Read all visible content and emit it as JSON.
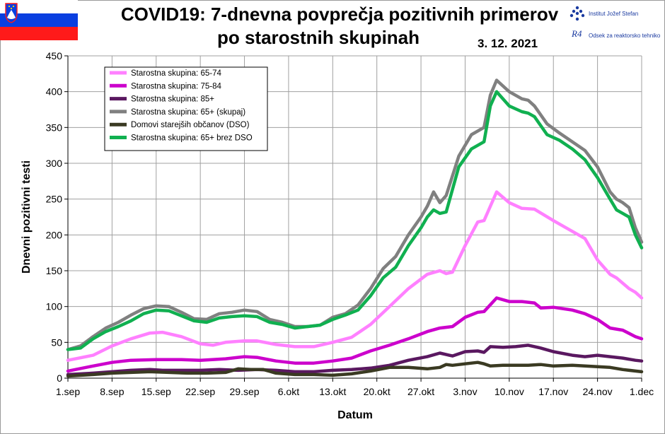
{
  "header": {
    "title_line1": "COVID19: 7-dnevna povprečja pozitivnih primerov",
    "title_line2": "po starostnih skupinah",
    "date": "3. 12. 2021",
    "institute_name": "Institut Jožef Stefan",
    "institute_name_bold": "Jožef Stefan",
    "institute_prefix": "Institut",
    "department": "Odsek za reaktorsko tehniko",
    "department_logo_glyph": "R4",
    "flag_colors": [
      "#ffffff",
      "#0a3fe0",
      "#ff1a1a"
    ],
    "logo_color": "#1a3aa0"
  },
  "chart_data": {
    "type": "line",
    "title": "COVID19: 7-dnevna povprečja pozitivnih primerov po starostnih skupinah",
    "xlabel": "Datum",
    "ylabel": "Dnevni pozitivni  testi",
    "ylim": [
      0,
      450
    ],
    "yticks": [
      0,
      50,
      100,
      150,
      200,
      250,
      300,
      350,
      400,
      450
    ],
    "xrange_days": [
      0,
      91
    ],
    "xticks": [
      {
        "day": 0,
        "label": "1.sep"
      },
      {
        "day": 7,
        "label": "8.sep"
      },
      {
        "day": 14,
        "label": "15.sep"
      },
      {
        "day": 21,
        "label": "22.sep"
      },
      {
        "day": 28,
        "label": "29.sep"
      },
      {
        "day": 35,
        "label": "6.okt"
      },
      {
        "day": 42,
        "label": "13.okt"
      },
      {
        "day": 49,
        "label": "20.okt"
      },
      {
        "day": 56,
        "label": "27.okt"
      },
      {
        "day": 63,
        "label": "3.nov"
      },
      {
        "day": 70,
        "label": "10.nov"
      },
      {
        "day": 77,
        "label": "17.nov"
      },
      {
        "day": 84,
        "label": "24.nov"
      },
      {
        "day": 91,
        "label": "1.dec"
      }
    ],
    "grid": true,
    "legend_position": "top-left",
    "series": [
      {
        "name": "Starostna skupina: 65-74",
        "color": "#ff80ff",
        "points": [
          [
            0,
            25
          ],
          [
            4,
            32
          ],
          [
            7,
            45
          ],
          [
            10,
            55
          ],
          [
            13,
            63
          ],
          [
            15,
            64
          ],
          [
            18,
            58
          ],
          [
            21,
            48
          ],
          [
            23,
            46
          ],
          [
            25,
            50
          ],
          [
            28,
            52
          ],
          [
            30,
            52
          ],
          [
            33,
            47
          ],
          [
            36,
            44
          ],
          [
            39,
            44
          ],
          [
            42,
            50
          ],
          [
            45,
            57
          ],
          [
            48,
            75
          ],
          [
            51,
            100
          ],
          [
            54,
            125
          ],
          [
            57,
            145
          ],
          [
            59,
            150
          ],
          [
            60,
            146
          ],
          [
            61,
            148
          ],
          [
            63,
            185
          ],
          [
            65,
            218
          ],
          [
            66,
            220
          ],
          [
            68,
            260
          ],
          [
            70,
            245
          ],
          [
            72,
            237
          ],
          [
            74,
            236
          ],
          [
            77,
            220
          ],
          [
            80,
            205
          ],
          [
            82,
            195
          ],
          [
            84,
            165
          ],
          [
            86,
            145
          ],
          [
            87,
            140
          ],
          [
            89,
            125
          ],
          [
            90,
            120
          ],
          [
            91,
            112
          ]
        ]
      },
      {
        "name": "Starostna skupina: 75-84",
        "color": "#cc00cc",
        "points": [
          [
            0,
            10
          ],
          [
            4,
            17
          ],
          [
            7,
            22
          ],
          [
            10,
            25
          ],
          [
            14,
            26
          ],
          [
            18,
            26
          ],
          [
            21,
            25
          ],
          [
            25,
            27
          ],
          [
            28,
            30
          ],
          [
            30,
            29
          ],
          [
            33,
            24
          ],
          [
            36,
            21
          ],
          [
            39,
            21
          ],
          [
            42,
            24
          ],
          [
            45,
            28
          ],
          [
            48,
            38
          ],
          [
            51,
            46
          ],
          [
            54,
            55
          ],
          [
            57,
            65
          ],
          [
            59,
            70
          ],
          [
            61,
            72
          ],
          [
            63,
            85
          ],
          [
            65,
            92
          ],
          [
            66,
            93
          ],
          [
            68,
            112
          ],
          [
            70,
            107
          ],
          [
            72,
            107
          ],
          [
            74,
            105
          ],
          [
            75,
            98
          ],
          [
            77,
            99
          ],
          [
            80,
            95
          ],
          [
            82,
            90
          ],
          [
            84,
            82
          ],
          [
            86,
            70
          ],
          [
            88,
            67
          ],
          [
            90,
            58
          ],
          [
            91,
            55
          ]
        ]
      },
      {
        "name": "Starostna skupina: 85+",
        "color": "#5a1860",
        "points": [
          [
            0,
            5
          ],
          [
            4,
            7
          ],
          [
            7,
            9
          ],
          [
            10,
            11
          ],
          [
            13,
            12
          ],
          [
            15,
            11
          ],
          [
            18,
            11
          ],
          [
            21,
            11
          ],
          [
            24,
            12
          ],
          [
            27,
            11
          ],
          [
            30,
            12
          ],
          [
            33,
            11
          ],
          [
            36,
            9
          ],
          [
            39,
            9
          ],
          [
            42,
            11
          ],
          [
            45,
            12
          ],
          [
            48,
            14
          ],
          [
            51,
            18
          ],
          [
            54,
            25
          ],
          [
            57,
            30
          ],
          [
            59,
            35
          ],
          [
            60,
            33
          ],
          [
            61,
            31
          ],
          [
            63,
            37
          ],
          [
            65,
            38
          ],
          [
            66,
            36
          ],
          [
            67,
            44
          ],
          [
            69,
            43
          ],
          [
            71,
            44
          ],
          [
            73,
            46
          ],
          [
            75,
            42
          ],
          [
            77,
            37
          ],
          [
            80,
            32
          ],
          [
            82,
            30
          ],
          [
            84,
            32
          ],
          [
            86,
            30
          ],
          [
            88,
            28
          ],
          [
            90,
            25
          ],
          [
            91,
            24
          ]
        ]
      },
      {
        "name": "Starostna skupina: 65+ (skupaj)",
        "color": "#808080",
        "points": [
          [
            0,
            40
          ],
          [
            2,
            45
          ],
          [
            4,
            58
          ],
          [
            6,
            70
          ],
          [
            8,
            78
          ],
          [
            10,
            88
          ],
          [
            12,
            97
          ],
          [
            14,
            101
          ],
          [
            16,
            100
          ],
          [
            18,
            92
          ],
          [
            20,
            83
          ],
          [
            22,
            82
          ],
          [
            24,
            90
          ],
          [
            26,
            92
          ],
          [
            28,
            95
          ],
          [
            30,
            93
          ],
          [
            32,
            82
          ],
          [
            34,
            78
          ],
          [
            36,
            72
          ],
          [
            38,
            72
          ],
          [
            40,
            74
          ],
          [
            42,
            85
          ],
          [
            44,
            90
          ],
          [
            46,
            102
          ],
          [
            48,
            125
          ],
          [
            50,
            153
          ],
          [
            52,
            170
          ],
          [
            54,
            200
          ],
          [
            56,
            225
          ],
          [
            57,
            240
          ],
          [
            58,
            260
          ],
          [
            59,
            245
          ],
          [
            60,
            255
          ],
          [
            62,
            310
          ],
          [
            64,
            340
          ],
          [
            66,
            350
          ],
          [
            67,
            395
          ],
          [
            68,
            416
          ],
          [
            70,
            400
          ],
          [
            72,
            390
          ],
          [
            73,
            388
          ],
          [
            74,
            380
          ],
          [
            76,
            355
          ],
          [
            78,
            342
          ],
          [
            80,
            330
          ],
          [
            82,
            318
          ],
          [
            84,
            295
          ],
          [
            86,
            260
          ],
          [
            87,
            250
          ],
          [
            88,
            245
          ],
          [
            89,
            238
          ],
          [
            90,
            210
          ],
          [
            91,
            190
          ]
        ]
      },
      {
        "name": "Domovi starejših občanov (DSO)",
        "color": "#3a3a22",
        "points": [
          [
            0,
            3
          ],
          [
            4,
            5
          ],
          [
            7,
            7
          ],
          [
            10,
            8
          ],
          [
            13,
            9
          ],
          [
            16,
            8
          ],
          [
            19,
            7
          ],
          [
            22,
            7
          ],
          [
            25,
            8
          ],
          [
            27,
            13
          ],
          [
            29,
            12
          ],
          [
            31,
            12
          ],
          [
            33,
            7
          ],
          [
            36,
            5
          ],
          [
            39,
            5
          ],
          [
            42,
            4
          ],
          [
            45,
            6
          ],
          [
            48,
            10
          ],
          [
            51,
            15
          ],
          [
            54,
            15
          ],
          [
            57,
            13
          ],
          [
            59,
            15
          ],
          [
            60,
            19
          ],
          [
            61,
            18
          ],
          [
            63,
            20
          ],
          [
            65,
            22
          ],
          [
            66,
            20
          ],
          [
            67,
            17
          ],
          [
            69,
            18
          ],
          [
            71,
            18
          ],
          [
            73,
            18
          ],
          [
            75,
            19
          ],
          [
            77,
            17
          ],
          [
            80,
            18
          ],
          [
            82,
            17
          ],
          [
            84,
            16
          ],
          [
            86,
            15
          ],
          [
            88,
            12
          ],
          [
            90,
            10
          ],
          [
            91,
            9
          ]
        ]
      },
      {
        "name": "Starostna skupina: 65+ brez DSO",
        "color": "#10b050",
        "points": [
          [
            0,
            40
          ],
          [
            2,
            42
          ],
          [
            4,
            55
          ],
          [
            6,
            65
          ],
          [
            8,
            72
          ],
          [
            10,
            80
          ],
          [
            12,
            90
          ],
          [
            14,
            95
          ],
          [
            16,
            94
          ],
          [
            18,
            87
          ],
          [
            20,
            80
          ],
          [
            22,
            78
          ],
          [
            24,
            84
          ],
          [
            26,
            86
          ],
          [
            28,
            87
          ],
          [
            30,
            86
          ],
          [
            32,
            78
          ],
          [
            34,
            75
          ],
          [
            36,
            70
          ],
          [
            38,
            72
          ],
          [
            40,
            74
          ],
          [
            42,
            82
          ],
          [
            44,
            88
          ],
          [
            46,
            95
          ],
          [
            48,
            115
          ],
          [
            50,
            140
          ],
          [
            52,
            155
          ],
          [
            54,
            185
          ],
          [
            56,
            210
          ],
          [
            57,
            225
          ],
          [
            58,
            235
          ],
          [
            59,
            230
          ],
          [
            60,
            232
          ],
          [
            62,
            295
          ],
          [
            64,
            320
          ],
          [
            66,
            330
          ],
          [
            67,
            380
          ],
          [
            68,
            400
          ],
          [
            70,
            380
          ],
          [
            72,
            372
          ],
          [
            73,
            370
          ],
          [
            74,
            365
          ],
          [
            76,
            340
          ],
          [
            78,
            332
          ],
          [
            80,
            320
          ],
          [
            82,
            305
          ],
          [
            84,
            280
          ],
          [
            86,
            250
          ],
          [
            87,
            235
          ],
          [
            88,
            230
          ],
          [
            89,
            225
          ],
          [
            90,
            200
          ],
          [
            91,
            182
          ]
        ]
      }
    ]
  }
}
